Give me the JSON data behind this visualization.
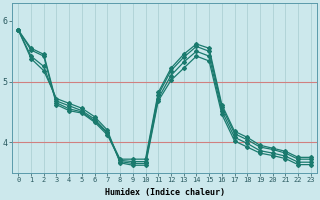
{
  "xlabel": "Humidex (Indice chaleur)",
  "xlim": [
    -0.5,
    23.5
  ],
  "ylim": [
    3.5,
    6.3
  ],
  "yticks": [
    4,
    5,
    6
  ],
  "xticks": [
    0,
    1,
    2,
    3,
    4,
    5,
    6,
    7,
    8,
    9,
    10,
    11,
    12,
    13,
    14,
    15,
    16,
    17,
    18,
    19,
    20,
    21,
    22,
    23
  ],
  "bg_color": "#cce8ec",
  "grid_color_h": "#d08080",
  "grid_color_v": "#a8ccd0",
  "line_color": "#1a7a6e",
  "series": [
    [
      5.85,
      5.55,
      5.45,
      4.65,
      4.55,
      4.5,
      4.35,
      4.15,
      3.72,
      3.72,
      3.72,
      4.82,
      5.22,
      5.45,
      5.62,
      5.55,
      4.62,
      4.18,
      4.08,
      3.95,
      3.9,
      3.85,
      3.75,
      3.75
    ],
    [
      5.85,
      5.52,
      5.42,
      4.62,
      4.52,
      4.48,
      4.33,
      4.12,
      3.7,
      3.68,
      3.68,
      4.78,
      5.18,
      5.4,
      5.58,
      5.5,
      4.58,
      4.14,
      4.04,
      3.92,
      3.88,
      3.82,
      3.72,
      3.72
    ],
    [
      5.85,
      5.42,
      5.25,
      4.68,
      4.6,
      4.52,
      4.38,
      4.16,
      3.68,
      3.65,
      3.65,
      4.72,
      5.1,
      5.32,
      5.5,
      5.42,
      4.52,
      4.08,
      3.98,
      3.86,
      3.82,
      3.77,
      3.67,
      3.67
    ],
    [
      5.85,
      5.38,
      5.18,
      4.72,
      4.64,
      4.56,
      4.42,
      4.2,
      3.66,
      3.62,
      3.62,
      4.68,
      5.02,
      5.22,
      5.42,
      5.34,
      4.46,
      4.02,
      3.92,
      3.82,
      3.78,
      3.73,
      3.63,
      3.63
    ]
  ]
}
